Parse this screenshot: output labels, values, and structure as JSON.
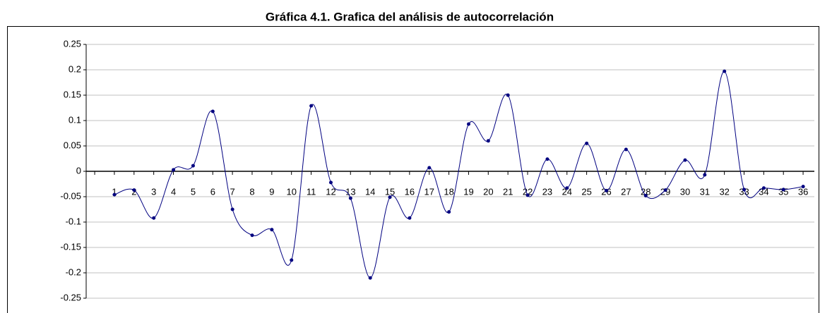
{
  "chart_data": {
    "type": "line",
    "title": "Gráfica 4.1. Grafica del análisis de autocorrelación",
    "categories": [
      "1",
      "2",
      "3",
      "4",
      "5",
      "6",
      "7",
      "8",
      "9",
      "10",
      "11",
      "12",
      "13",
      "14",
      "15",
      "16",
      "17",
      "18",
      "19",
      "20",
      "21",
      "22",
      "23",
      "24",
      "25",
      "26",
      "27",
      "28",
      "29",
      "30",
      "31",
      "32",
      "33",
      "34",
      "35",
      "36"
    ],
    "series": [
      {
        "color": "#000080",
        "values": [
          -0.046,
          -0.037,
          -0.092,
          0.003,
          0.011,
          0.118,
          -0.075,
          -0.126,
          -0.115,
          -0.175,
          0.129,
          -0.022,
          -0.053,
          -0.21,
          -0.051,
          -0.092,
          0.007,
          -0.08,
          0.093,
          0.06,
          0.15,
          -0.047,
          0.024,
          -0.033,
          0.055,
          -0.038,
          0.043,
          -0.048,
          -0.037,
          0.022,
          -0.007,
          0.197,
          -0.036,
          -0.033,
          -0.036,
          -0.03
        ]
      }
    ],
    "ylim": [
      -0.25,
      0.25
    ],
    "yticks": [
      -0.25,
      -0.2,
      -0.15,
      -0.1,
      -0.05,
      0,
      0.05,
      0.1,
      0.15,
      0.2,
      0.25
    ],
    "grid": true
  }
}
